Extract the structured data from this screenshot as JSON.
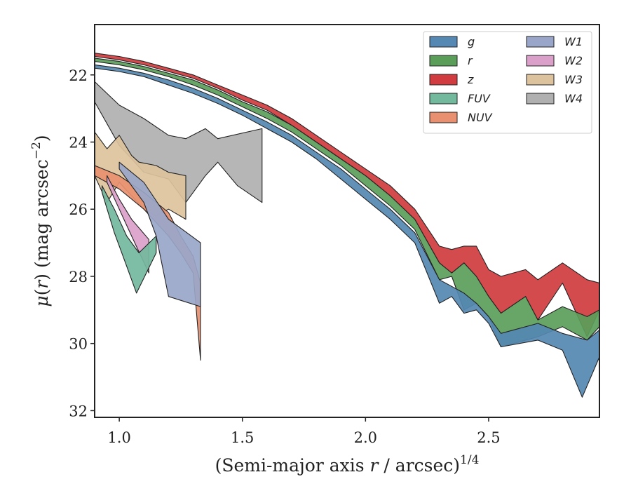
{
  "chart_data": {
    "type": "area",
    "title": "",
    "xlabel": "(Semi-major axis r / arcsec)^1/4",
    "xlabel_parts": {
      "prefix": "(Semi-major axis ",
      "var": "r",
      "mid": " / arcsec)",
      "sup": "1/4"
    },
    "ylabel": "μ(r) (mag arcsec^-2)",
    "ylabel_parts": {
      "mu": "μ",
      "open": "(",
      "var": "r",
      "close": ")",
      "unit": " (mag arcsec",
      "sup": "−2",
      "end": ")"
    },
    "xlim": [
      0.9,
      2.95
    ],
    "ylim": [
      32.2,
      20.5
    ],
    "y_inverted": true,
    "xticks": [
      1.0,
      1.5,
      2.0,
      2.5
    ],
    "xtick_labels": [
      "1.0",
      "1.5",
      "2.0",
      "2.5"
    ],
    "yticks": [
      22,
      24,
      26,
      28,
      30,
      32
    ],
    "ytick_labels": [
      "22",
      "24",
      "26",
      "28",
      "30",
      "32"
    ],
    "grid": false,
    "legend_position": "top-right",
    "legend_columns": 2,
    "series": [
      {
        "name": "W4",
        "color": "#b0b0b0",
        "upper": [
          [
            0.9,
            22.2
          ],
          [
            1.0,
            22.9
          ],
          [
            1.1,
            23.3
          ],
          [
            1.2,
            23.8
          ],
          [
            1.27,
            23.9
          ],
          [
            1.35,
            23.6
          ],
          [
            1.4,
            23.9
          ],
          [
            1.58,
            23.6
          ]
        ],
        "lower": [
          [
            0.9,
            22.8
          ],
          [
            1.0,
            24.1
          ],
          [
            1.1,
            24.9
          ],
          [
            1.2,
            25.1
          ],
          [
            1.27,
            25.8
          ],
          [
            1.35,
            25.0
          ],
          [
            1.4,
            24.6
          ],
          [
            1.48,
            25.3
          ],
          [
            1.58,
            25.8
          ]
        ]
      },
      {
        "name": "W3",
        "color": "#ddc39d",
        "upper": [
          [
            0.9,
            23.7
          ],
          [
            0.95,
            24.2
          ],
          [
            1.0,
            23.8
          ],
          [
            1.05,
            24.4
          ],
          [
            1.08,
            24.6
          ],
          [
            1.15,
            24.7
          ],
          [
            1.2,
            24.9
          ],
          [
            1.27,
            25.0
          ]
        ],
        "lower": [
          [
            0.9,
            25.0
          ],
          [
            0.95,
            25.8
          ],
          [
            1.0,
            25.2
          ],
          [
            1.05,
            25.6
          ],
          [
            1.1,
            26.0
          ],
          [
            1.15,
            26.2
          ],
          [
            1.2,
            26.0
          ],
          [
            1.27,
            26.3
          ]
        ]
      },
      {
        "name": "NUV",
        "color": "#e8906f",
        "upper": [
          [
            0.9,
            24.7
          ],
          [
            1.0,
            25.0
          ],
          [
            1.1,
            25.5
          ],
          [
            1.2,
            26.1
          ],
          [
            1.25,
            26.8
          ],
          [
            1.3,
            27.4
          ],
          [
            1.33,
            28.2
          ]
        ],
        "lower": [
          [
            0.9,
            25.0
          ],
          [
            1.0,
            25.4
          ],
          [
            1.1,
            26.0
          ],
          [
            1.2,
            26.8
          ],
          [
            1.25,
            27.3
          ],
          [
            1.3,
            27.9
          ],
          [
            1.33,
            30.5
          ]
        ]
      },
      {
        "name": "W2",
        "color": "#dba0c9",
        "upper": [
          [
            0.95,
            25.0
          ],
          [
            1.0,
            25.7
          ],
          [
            1.05,
            26.3
          ],
          [
            1.12,
            26.9
          ]
        ],
        "lower": [
          [
            0.95,
            25.2
          ],
          [
            1.0,
            26.0
          ],
          [
            1.05,
            26.8
          ],
          [
            1.12,
            27.9
          ]
        ]
      },
      {
        "name": "FUV",
        "color": "#73b99e",
        "upper": [
          [
            0.93,
            25.3
          ],
          [
            0.98,
            26.0
          ],
          [
            1.03,
            26.8
          ],
          [
            1.08,
            27.3
          ],
          [
            1.15,
            26.8
          ]
        ],
        "lower": [
          [
            0.93,
            25.5
          ],
          [
            0.98,
            26.7
          ],
          [
            1.03,
            27.7
          ],
          [
            1.07,
            28.5
          ],
          [
            1.15,
            27.3
          ]
        ]
      },
      {
        "name": "W1",
        "color": "#99a6c9",
        "upper": [
          [
            1.0,
            24.6
          ],
          [
            1.1,
            25.2
          ],
          [
            1.2,
            26.3
          ],
          [
            1.33,
            27.0
          ]
        ],
        "lower": [
          [
            1.0,
            24.8
          ],
          [
            1.1,
            25.8
          ],
          [
            1.15,
            26.8
          ],
          [
            1.2,
            28.6
          ],
          [
            1.33,
            28.9
          ]
        ]
      },
      {
        "name": "z",
        "color": "#d03c3f",
        "upper": [
          [
            0.9,
            21.35
          ],
          [
            1.0,
            21.45
          ],
          [
            1.1,
            21.6
          ],
          [
            1.2,
            21.8
          ],
          [
            1.3,
            22.0
          ],
          [
            1.4,
            22.3
          ],
          [
            1.5,
            22.6
          ],
          [
            1.6,
            22.9
          ],
          [
            1.7,
            23.3
          ],
          [
            1.8,
            23.8
          ],
          [
            1.9,
            24.3
          ],
          [
            2.0,
            24.8
          ],
          [
            2.1,
            25.3
          ],
          [
            2.2,
            26.0
          ],
          [
            2.3,
            27.1
          ],
          [
            2.35,
            27.2
          ],
          [
            2.4,
            27.1
          ],
          [
            2.45,
            27.1
          ],
          [
            2.5,
            27.8
          ],
          [
            2.55,
            28.0
          ],
          [
            2.65,
            27.8
          ],
          [
            2.7,
            28.1
          ],
          [
            2.8,
            27.6
          ],
          [
            2.9,
            28.1
          ],
          [
            2.95,
            28.2
          ]
        ],
        "lower": [
          [
            0.9,
            21.45
          ],
          [
            1.0,
            21.55
          ],
          [
            1.1,
            21.7
          ],
          [
            1.2,
            21.9
          ],
          [
            1.3,
            22.1
          ],
          [
            1.4,
            22.4
          ],
          [
            1.5,
            22.75
          ],
          [
            1.6,
            23.05
          ],
          [
            1.7,
            23.5
          ],
          [
            1.8,
            24.0
          ],
          [
            1.9,
            24.5
          ],
          [
            2.0,
            25.0
          ],
          [
            2.1,
            25.6
          ],
          [
            2.2,
            26.3
          ],
          [
            2.3,
            27.6
          ],
          [
            2.35,
            27.9
          ],
          [
            2.4,
            27.6
          ],
          [
            2.45,
            28.0
          ],
          [
            2.5,
            28.6
          ],
          [
            2.55,
            29.1
          ],
          [
            2.65,
            28.6
          ],
          [
            2.7,
            29.3
          ],
          [
            2.8,
            28.2
          ],
          [
            2.9,
            29.8
          ],
          [
            2.95,
            29.0
          ]
        ]
      },
      {
        "name": "r",
        "color": "#5a9e5a",
        "upper": [
          [
            0.9,
            21.5
          ],
          [
            1.0,
            21.6
          ],
          [
            1.1,
            21.75
          ],
          [
            1.2,
            21.95
          ],
          [
            1.3,
            22.15
          ],
          [
            1.4,
            22.45
          ],
          [
            1.5,
            22.8
          ],
          [
            1.6,
            23.1
          ],
          [
            1.7,
            23.5
          ],
          [
            1.8,
            24.0
          ],
          [
            1.9,
            24.5
          ],
          [
            2.0,
            25.0
          ],
          [
            2.1,
            25.6
          ],
          [
            2.2,
            26.3
          ],
          [
            2.3,
            27.6
          ],
          [
            2.35,
            27.9
          ],
          [
            2.4,
            27.6
          ],
          [
            2.45,
            28.0
          ],
          [
            2.5,
            28.6
          ],
          [
            2.55,
            29.1
          ],
          [
            2.65,
            28.6
          ],
          [
            2.7,
            29.3
          ],
          [
            2.8,
            28.9
          ],
          [
            2.9,
            29.2
          ],
          [
            2.95,
            29.0
          ]
        ],
        "lower": [
          [
            0.9,
            21.6
          ],
          [
            1.0,
            21.7
          ],
          [
            1.1,
            21.85
          ],
          [
            1.2,
            22.05
          ],
          [
            1.3,
            22.3
          ],
          [
            1.4,
            22.6
          ],
          [
            1.5,
            22.95
          ],
          [
            1.6,
            23.3
          ],
          [
            1.7,
            23.7
          ],
          [
            1.8,
            24.2
          ],
          [
            1.9,
            24.7
          ],
          [
            2.0,
            25.3
          ],
          [
            2.1,
            25.9
          ],
          [
            2.2,
            26.6
          ],
          [
            2.3,
            28.1
          ],
          [
            2.35,
            28.0
          ],
          [
            2.4,
            29.0
          ],
          [
            2.45,
            28.8
          ],
          [
            2.5,
            29.2
          ],
          [
            2.55,
            30.1
          ],
          [
            2.7,
            29.8
          ],
          [
            2.8,
            29.5
          ],
          [
            2.9,
            29.9
          ],
          [
            2.95,
            29.5
          ]
        ]
      },
      {
        "name": "g",
        "color": "#5588b2",
        "upper": [
          [
            0.9,
            21.7
          ],
          [
            1.0,
            21.8
          ],
          [
            1.1,
            21.95
          ],
          [
            1.2,
            22.15
          ],
          [
            1.3,
            22.4
          ],
          [
            1.4,
            22.7
          ],
          [
            1.5,
            23.05
          ],
          [
            1.6,
            23.4
          ],
          [
            1.7,
            23.8
          ],
          [
            1.8,
            24.3
          ],
          [
            1.9,
            24.8
          ],
          [
            2.0,
            25.4
          ],
          [
            2.1,
            26.0
          ],
          [
            2.2,
            26.7
          ],
          [
            2.3,
            28.1
          ],
          [
            2.35,
            28.3
          ],
          [
            2.4,
            28.5
          ],
          [
            2.45,
            28.8
          ],
          [
            2.5,
            29.2
          ],
          [
            2.55,
            29.7
          ],
          [
            2.7,
            29.4
          ],
          [
            2.8,
            29.7
          ],
          [
            2.9,
            29.9
          ],
          [
            2.95,
            29.6
          ]
        ],
        "lower": [
          [
            0.9,
            21.8
          ],
          [
            1.0,
            21.9
          ],
          [
            1.1,
            22.05
          ],
          [
            1.2,
            22.3
          ],
          [
            1.3,
            22.55
          ],
          [
            1.4,
            22.85
          ],
          [
            1.5,
            23.2
          ],
          [
            1.6,
            23.6
          ],
          [
            1.7,
            24.0
          ],
          [
            1.8,
            24.5
          ],
          [
            1.9,
            25.1
          ],
          [
            2.0,
            25.7
          ],
          [
            2.1,
            26.3
          ],
          [
            2.2,
            27.0
          ],
          [
            2.3,
            28.8
          ],
          [
            2.35,
            28.6
          ],
          [
            2.4,
            29.1
          ],
          [
            2.45,
            29.0
          ],
          [
            2.5,
            29.4
          ],
          [
            2.55,
            30.1
          ],
          [
            2.7,
            29.9
          ],
          [
            2.8,
            30.2
          ],
          [
            2.88,
            31.6
          ],
          [
            2.95,
            30.4
          ]
        ]
      }
    ],
    "legend": [
      {
        "name": "g",
        "color": "#5588b2"
      },
      {
        "name": "r",
        "color": "#5a9e5a"
      },
      {
        "name": "z",
        "color": "#d03c3f"
      },
      {
        "name": "FUV",
        "color": "#73b99e"
      },
      {
        "name": "NUV",
        "color": "#e8906f"
      },
      {
        "name": "W1",
        "color": "#99a6c9"
      },
      {
        "name": "W2",
        "color": "#dba0c9"
      },
      {
        "name": "W3",
        "color": "#ddc39d"
      },
      {
        "name": "W4",
        "color": "#b0b0b0"
      }
    ]
  }
}
